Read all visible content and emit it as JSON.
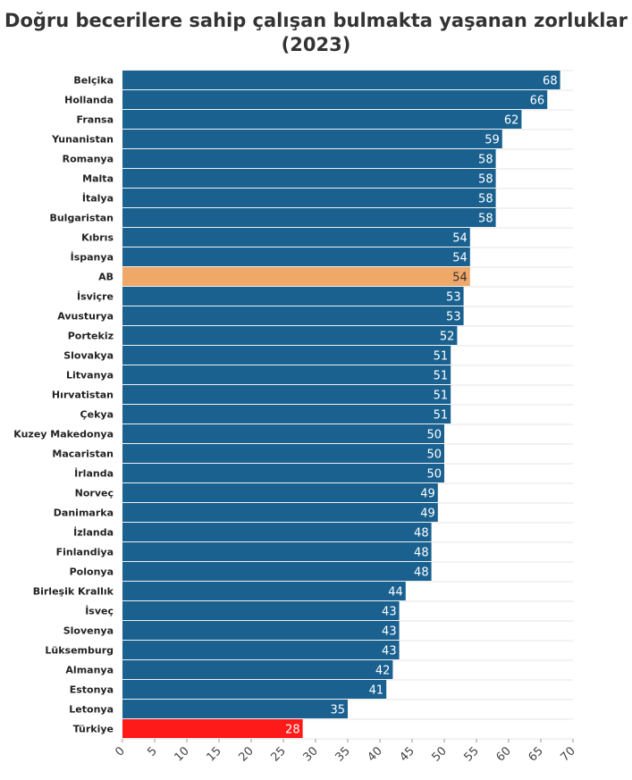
{
  "chart_data": {
    "type": "bar",
    "orientation": "horizontal",
    "title": "Doğru becerilere sahip çalışan bulmakta yaşanan zorluklar (2023)",
    "categories": [
      "Belçika",
      "Hollanda",
      "Fransa",
      "Yunanistan",
      "Romanya",
      "Malta",
      "İtalya",
      "Bulgaristan",
      "Kıbrıs",
      "İspanya",
      "AB",
      "İsviçre",
      "Avusturya",
      "Portekiz",
      "Slovakya",
      "Litvanya",
      "Hırvatistan",
      "Çekya",
      "Kuzey Makedonya",
      "Macaristan",
      "İrlanda",
      "Norveç",
      "Danimarka",
      "İzlanda",
      "Finlandiya",
      "Polonya",
      "Birleşik Krallık",
      "İsveç",
      "Slovenya",
      "Lüksemburg",
      "Almanya",
      "Estonya",
      "Letonya",
      "Türkiye"
    ],
    "values": [
      68,
      66,
      62,
      59,
      58,
      58,
      58,
      58,
      54,
      54,
      54,
      53,
      53,
      52,
      51,
      51,
      51,
      51,
      50,
      50,
      50,
      49,
      49,
      48,
      48,
      48,
      44,
      43,
      43,
      43,
      42,
      41,
      35,
      28
    ],
    "xlim": [
      0,
      70
    ],
    "xticks": [
      0,
      5,
      10,
      15,
      20,
      25,
      30,
      35,
      40,
      45,
      50,
      55,
      60,
      65,
      70
    ],
    "grid": true,
    "colors": {
      "default": "#1a6190",
      "highlight_eu": "#f0a868",
      "highlight_tr": "#ff1a1a",
      "label_light": "#ffffff",
      "label_dark": "#333333"
    },
    "highlights": {
      "AB": "highlight_eu",
      "Türkiye": "highlight_tr"
    }
  }
}
